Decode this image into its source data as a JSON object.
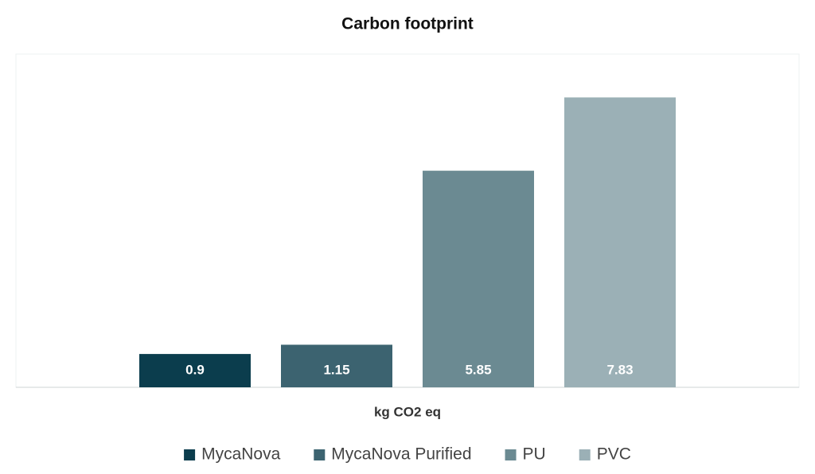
{
  "chart_data": {
    "type": "bar",
    "title": "Carbon footprint",
    "categories": [
      "kg CO2 eq"
    ],
    "series": [
      {
        "name": "MycaNova",
        "color": "#0b3d4d",
        "values": [
          0.9
        ]
      },
      {
        "name": "MycaNova Purified",
        "color": "#3c6370",
        "values": [
          1.15
        ]
      },
      {
        "name": "PU",
        "color": "#6b8a92",
        "values": [
          5.85
        ]
      },
      {
        "name": "PVC",
        "color": "#9bb0b6",
        "values": [
          7.83
        ]
      }
    ],
    "ylim": [
      0,
      9
    ],
    "legend": "bottom"
  }
}
